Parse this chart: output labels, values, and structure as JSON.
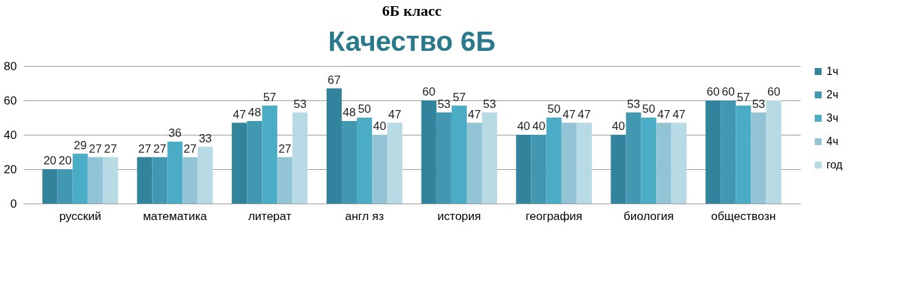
{
  "chart_data": {
    "type": "bar",
    "title": "6Б класс",
    "subtitle": "Качество 6Б",
    "categories": [
      "русский",
      "математика",
      "литерат",
      "англ яз",
      "история",
      "география",
      "биология",
      "обществозн"
    ],
    "series": [
      {
        "name": "1ч",
        "color": "#31849b",
        "values": [
          20,
          27,
          47,
          67,
          60,
          40,
          40,
          60
        ]
      },
      {
        "name": "2ч",
        "color": "#4198b0",
        "values": [
          20,
          27,
          48,
          48,
          53,
          40,
          53,
          60
        ]
      },
      {
        "name": "3ч",
        "color": "#4bacc6",
        "values": [
          29,
          36,
          57,
          50,
          57,
          50,
          50,
          57
        ]
      },
      {
        "name": "4ч",
        "color": "#93c4d6",
        "values": [
          27,
          27,
          27,
          40,
          47,
          47,
          47,
          53
        ]
      },
      {
        "name": "год",
        "color": "#b7dae5",
        "values": [
          27,
          33,
          53,
          47,
          53,
          47,
          47,
          60
        ]
      }
    ],
    "ylim": [
      0,
      80
    ],
    "yticks": [
      0,
      20,
      40,
      60,
      80
    ],
    "grid": "y",
    "legend": "right",
    "data_labels": true
  }
}
